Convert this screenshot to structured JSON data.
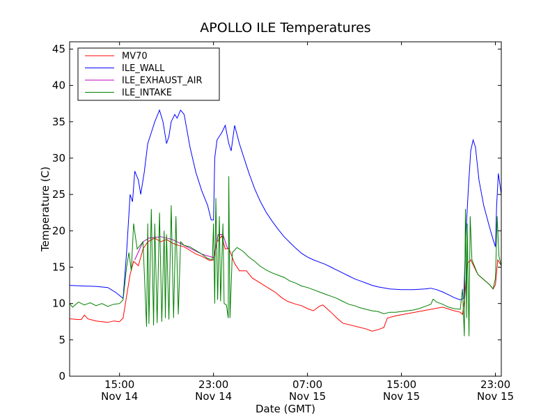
{
  "chart_data": {
    "type": "line",
    "title": "APOLLO ILE Temperatures",
    "xlabel": "Date (GMT)",
    "ylabel": "Temperature (C)",
    "x_unit": "hour",
    "xlim": [
      10.75,
      47.5
    ],
    "ylim": [
      0,
      46
    ],
    "grid": false,
    "legend_position": "upper-left",
    "y_ticks": [
      0,
      5,
      10,
      15,
      20,
      25,
      30,
      35,
      40,
      45
    ],
    "x_ticks": [
      {
        "x": 15,
        "time": "15:00",
        "date": "Nov 14"
      },
      {
        "x": 23,
        "time": "23:00",
        "date": "Nov 14"
      },
      {
        "x": 31,
        "time": "07:00",
        "date": "Nov 15"
      },
      {
        "x": 39,
        "time": "15:00",
        "date": "Nov 15"
      },
      {
        "x": 47,
        "time": "23:00",
        "date": "Nov 15"
      }
    ],
    "series": [
      {
        "name": "MV70",
        "color": "#ff0000",
        "points": [
          [
            10.75,
            7.9
          ],
          [
            11.5,
            7.8
          ],
          [
            11.75,
            7.8
          ],
          [
            12,
            8.4
          ],
          [
            12.3,
            7.9
          ],
          [
            13,
            7.6
          ],
          [
            14,
            7.4
          ],
          [
            14.5,
            7.6
          ],
          [
            15,
            7.5
          ],
          [
            15.3,
            8.0
          ],
          [
            15.6,
            11.0
          ],
          [
            15.9,
            14.0
          ],
          [
            16.2,
            15.8
          ],
          [
            16.6,
            15.2
          ],
          [
            17.0,
            17.5
          ],
          [
            17.4,
            18.5
          ],
          [
            18.0,
            19.0
          ],
          [
            18.5,
            18.5
          ],
          [
            19.0,
            18.8
          ],
          [
            19.5,
            18.3
          ],
          [
            20.0,
            18.0
          ],
          [
            20.5,
            17.8
          ],
          [
            21.0,
            17.3
          ],
          [
            21.5,
            16.8
          ],
          [
            22.0,
            16.5
          ],
          [
            22.7,
            15.9
          ],
          [
            23.0,
            16.0
          ],
          [
            23.3,
            18.5
          ],
          [
            23.7,
            19.3
          ],
          [
            24.0,
            17.5
          ],
          [
            24.3,
            17.6
          ],
          [
            24.8,
            15.5
          ],
          [
            25.2,
            14.5
          ],
          [
            25.8,
            14.5
          ],
          [
            26.3,
            13.5
          ],
          [
            26.8,
            13.0
          ],
          [
            27.3,
            12.5
          ],
          [
            27.8,
            12.0
          ],
          [
            28.3,
            11.5
          ],
          [
            28.8,
            10.8
          ],
          [
            29.3,
            10.3
          ],
          [
            30,
            9.9
          ],
          [
            30.5,
            9.7
          ],
          [
            31,
            9.3
          ],
          [
            31.5,
            9.0
          ],
          [
            32,
            9.6
          ],
          [
            32.3,
            9.8
          ],
          [
            33,
            8.8
          ],
          [
            33.5,
            8.0
          ],
          [
            34,
            7.3
          ],
          [
            35,
            6.9
          ],
          [
            36,
            6.5
          ],
          [
            36.5,
            6.2
          ],
          [
            37,
            6.4
          ],
          [
            37.5,
            6.7
          ],
          [
            37.8,
            8.0
          ],
          [
            38.5,
            8.3
          ],
          [
            39.5,
            8.6
          ],
          [
            40.5,
            8.9
          ],
          [
            41.5,
            9.2
          ],
          [
            42.5,
            9.5
          ],
          [
            43.5,
            9.0
          ],
          [
            44,
            8.8
          ],
          [
            44.2,
            8.5
          ],
          [
            44.4,
            11.0
          ],
          [
            44.6,
            15.5
          ],
          [
            44.9,
            16.0
          ],
          [
            45.2,
            15.0
          ],
          [
            45.5,
            14.0
          ],
          [
            46.0,
            13.3
          ],
          [
            46.5,
            12.6
          ],
          [
            46.8,
            12.0
          ],
          [
            47.0,
            12.6
          ],
          [
            47.2,
            16.0
          ],
          [
            47.5,
            15.2
          ]
        ]
      },
      {
        "name": "ILE_WALL",
        "color": "#0000ff",
        "points": [
          [
            10.75,
            12.5
          ],
          [
            12,
            12.4
          ],
          [
            13,
            12.35
          ],
          [
            14,
            12.2
          ],
          [
            14.7,
            11.5
          ],
          [
            15.3,
            10.7
          ],
          [
            15.6,
            17.0
          ],
          [
            15.9,
            25.0
          ],
          [
            16.1,
            24.0
          ],
          [
            16.3,
            28.2
          ],
          [
            16.6,
            27.0
          ],
          [
            16.8,
            25.0
          ],
          [
            17.1,
            28.0
          ],
          [
            17.4,
            32.0
          ],
          [
            17.7,
            33.5
          ],
          [
            18.0,
            35.0
          ],
          [
            18.4,
            36.6
          ],
          [
            18.7,
            35.0
          ],
          [
            19.0,
            32.0
          ],
          [
            19.2,
            33.0
          ],
          [
            19.4,
            35.0
          ],
          [
            19.7,
            36.0
          ],
          [
            19.9,
            35.5
          ],
          [
            20.2,
            36.6
          ],
          [
            20.5,
            36.0
          ],
          [
            21.0,
            31.5
          ],
          [
            21.5,
            28.0
          ],
          [
            22.0,
            25.5
          ],
          [
            22.5,
            23.5
          ],
          [
            22.8,
            21.5
          ],
          [
            23.0,
            21.5
          ],
          [
            23.1,
            30.0
          ],
          [
            23.3,
            32.5
          ],
          [
            23.7,
            33.5
          ],
          [
            24.0,
            34.5
          ],
          [
            24.3,
            32.0
          ],
          [
            24.5,
            31.0
          ],
          [
            24.8,
            34.5
          ],
          [
            25.2,
            32.0
          ],
          [
            25.5,
            30.5
          ],
          [
            26,
            28.0
          ],
          [
            26.5,
            25.8
          ],
          [
            27,
            24.0
          ],
          [
            27.5,
            22.5
          ],
          [
            28,
            21.3
          ],
          [
            28.5,
            20.2
          ],
          [
            29,
            19.2
          ],
          [
            29.5,
            18.4
          ],
          [
            30,
            17.6
          ],
          [
            30.5,
            16.9
          ],
          [
            31,
            16.4
          ],
          [
            31.5,
            16.0
          ],
          [
            32,
            15.7
          ],
          [
            32.5,
            15.4
          ],
          [
            33,
            15.0
          ],
          [
            33.5,
            14.6
          ],
          [
            34,
            14.2
          ],
          [
            34.5,
            13.8
          ],
          [
            35,
            13.4
          ],
          [
            35.5,
            13.1
          ],
          [
            36,
            12.8
          ],
          [
            36.5,
            12.5
          ],
          [
            37,
            12.3
          ],
          [
            38,
            12.0
          ],
          [
            39,
            11.9
          ],
          [
            40,
            11.9
          ],
          [
            41,
            12.0
          ],
          [
            41.5,
            12.1
          ],
          [
            42,
            11.9
          ],
          [
            42.5,
            11.6
          ],
          [
            43,
            11.2
          ],
          [
            43.5,
            10.8
          ],
          [
            44.0,
            10.5
          ],
          [
            44.3,
            10.7
          ],
          [
            44.5,
            20.0
          ],
          [
            44.7,
            26.0
          ],
          [
            44.9,
            31.0
          ],
          [
            45.1,
            32.5
          ],
          [
            45.3,
            31.5
          ],
          [
            45.6,
            27.0
          ],
          [
            46.0,
            23.5
          ],
          [
            46.5,
            20.5
          ],
          [
            46.8,
            18.8
          ],
          [
            47.0,
            17.8
          ],
          [
            47.1,
            23.5
          ],
          [
            47.25,
            27.9
          ],
          [
            47.5,
            25.0
          ]
        ]
      },
      {
        "name": "ILE_EXHAUST_AIR",
        "color": "#bf00bf",
        "points": [
          [
            16.3,
            16.0
          ],
          [
            17.0,
            18.5
          ],
          [
            17.5,
            19.0
          ],
          [
            18.5,
            19.2
          ],
          [
            19.5,
            18.8
          ],
          [
            20.5,
            18.0
          ],
          [
            22.0,
            16.8
          ],
          [
            23.0,
            16.3
          ],
          [
            23.4,
            19.5
          ],
          [
            23.8,
            19.5
          ],
          [
            24.2,
            17.5
          ]
        ]
      },
      {
        "name": "ILE_INTAKE",
        "color": "#007f00",
        "points": [
          [
            10.75,
            10.0
          ],
          [
            11,
            9.5
          ],
          [
            11.5,
            10.2
          ],
          [
            12,
            9.8
          ],
          [
            12.5,
            10.1
          ],
          [
            13,
            9.7
          ],
          [
            13.5,
            10.0
          ],
          [
            14,
            9.6
          ],
          [
            14.5,
            9.9
          ],
          [
            15,
            10.0
          ],
          [
            15.3,
            10.5
          ],
          [
            15.6,
            15.0
          ],
          [
            15.8,
            17.0
          ],
          [
            16.0,
            14.5
          ],
          [
            16.2,
            21.0
          ],
          [
            16.5,
            17.5
          ],
          [
            17.0,
            18.5
          ],
          [
            17.3,
            6.8
          ],
          [
            17.4,
            21.0
          ],
          [
            17.5,
            7.2
          ],
          [
            17.7,
            23.0
          ],
          [
            17.9,
            7.0
          ],
          [
            18.0,
            21.0
          ],
          [
            18.2,
            7.3
          ],
          [
            18.4,
            22.5
          ],
          [
            18.6,
            7.5
          ],
          [
            18.8,
            20.0
          ],
          [
            18.9,
            8.0
          ],
          [
            19.0,
            19.5
          ],
          [
            19.2,
            7.8
          ],
          [
            19.4,
            23.5
          ],
          [
            19.6,
            8.0
          ],
          [
            19.8,
            22.0
          ],
          [
            20.0,
            8.5
          ],
          [
            20.2,
            18.5
          ],
          [
            20.5,
            18.0
          ],
          [
            21.0,
            17.8
          ],
          [
            21.5,
            17.3
          ],
          [
            22.0,
            16.8
          ],
          [
            22.5,
            16.2
          ],
          [
            22.9,
            16.0
          ],
          [
            23.0,
            21.0
          ],
          [
            23.1,
            10.0
          ],
          [
            23.2,
            24.5
          ],
          [
            23.35,
            10.5
          ],
          [
            23.5,
            22.0
          ],
          [
            23.6,
            10.3
          ],
          [
            23.8,
            21.0
          ],
          [
            23.9,
            10.0
          ],
          [
            24.1,
            9.8
          ],
          [
            24.25,
            8.0
          ],
          [
            24.3,
            27.5
          ],
          [
            24.4,
            8.0
          ],
          [
            24.6,
            17.0
          ],
          [
            25.0,
            17.7
          ],
          [
            25.5,
            17.2
          ],
          [
            26,
            16.4
          ],
          [
            26.5,
            15.8
          ],
          [
            27,
            15.1
          ],
          [
            27.5,
            14.6
          ],
          [
            28,
            14.2
          ],
          [
            28.5,
            13.9
          ],
          [
            29,
            13.6
          ],
          [
            29.5,
            13.1
          ],
          [
            30,
            12.8
          ],
          [
            30.5,
            12.4
          ],
          [
            31,
            12.2
          ],
          [
            31.5,
            11.9
          ],
          [
            32,
            11.6
          ],
          [
            32.5,
            11.3
          ],
          [
            33,
            11.0
          ],
          [
            33.5,
            10.7
          ],
          [
            34,
            10.3
          ],
          [
            34.5,
            9.9
          ],
          [
            35,
            9.7
          ],
          [
            35.5,
            9.4
          ],
          [
            36,
            9.2
          ],
          [
            36.5,
            9.0
          ],
          [
            37,
            8.9
          ],
          [
            37.5,
            8.6
          ],
          [
            38,
            8.8
          ],
          [
            38.5,
            8.8
          ],
          [
            39,
            8.9
          ],
          [
            39.5,
            9.0
          ],
          [
            40,
            9.1
          ],
          [
            40.5,
            9.3
          ],
          [
            41,
            9.6
          ],
          [
            41.5,
            9.9
          ],
          [
            41.7,
            10.6
          ],
          [
            42,
            10.2
          ],
          [
            42.5,
            9.9
          ],
          [
            43,
            9.5
          ],
          [
            43.5,
            9.3
          ],
          [
            44,
            9.2
          ],
          [
            44.2,
            12.0
          ],
          [
            44.35,
            5.5
          ],
          [
            44.45,
            23.0
          ],
          [
            44.55,
            8.0
          ],
          [
            44.6,
            21.0
          ],
          [
            44.75,
            5.5
          ],
          [
            44.85,
            22.0
          ],
          [
            45.0,
            16.0
          ],
          [
            45.5,
            14.0
          ],
          [
            46,
            13.3
          ],
          [
            46.5,
            12.6
          ],
          [
            46.8,
            12.0
          ],
          [
            47.0,
            13.5
          ],
          [
            47.15,
            22.0
          ],
          [
            47.3,
            16.5
          ],
          [
            47.5,
            15.2
          ]
        ]
      }
    ]
  }
}
